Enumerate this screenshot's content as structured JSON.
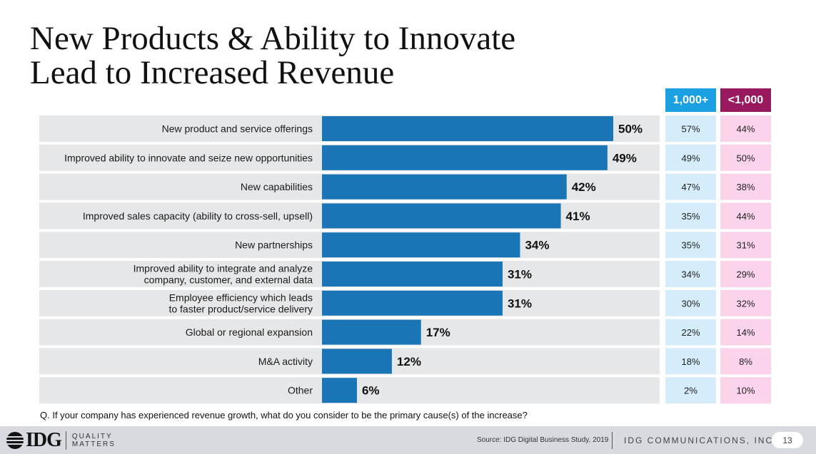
{
  "slide": {
    "title_line1": "New Products & Ability to Innovate",
    "title_line2": "Lead to Increased Revenue",
    "question": "Q. If your company has experienced revenue growth, what do you consider to be the primary cause(s) of the increase?"
  },
  "columns": {
    "big_label": "1,000+",
    "small_label": "<1,000",
    "big_color": "#1ba1e2",
    "small_color": "#99195e"
  },
  "chart_data": {
    "type": "bar",
    "orientation": "horizontal",
    "categories": [
      [
        "New product and service offerings"
      ],
      [
        "Improved ability to innovate and seize new opportunities"
      ],
      [
        "New capabilities"
      ],
      [
        "Improved sales capacity (ability to cross-sell, upsell)"
      ],
      [
        "New partnerships"
      ],
      [
        "Improved ability to integrate and analyze",
        "company, customer, and external data"
      ],
      [
        "Employee efficiency which leads",
        "to faster product/service delivery"
      ],
      [
        "Global or regional expansion"
      ],
      [
        "M&A activity"
      ],
      [
        "Other"
      ]
    ],
    "values": [
      50,
      49,
      42,
      41,
      34,
      31,
      31,
      17,
      12,
      6
    ],
    "value_labels": [
      "50%",
      "49%",
      "42%",
      "41%",
      "34%",
      "31%",
      "31%",
      "17%",
      "12%",
      "6%"
    ],
    "series": [
      {
        "name": "1,000+",
        "values": [
          57,
          49,
          47,
          35,
          35,
          34,
          30,
          22,
          18,
          2
        ],
        "labels": [
          "57%",
          "49%",
          "47%",
          "35%",
          "35%",
          "34%",
          "30%",
          "22%",
          "18%",
          "2%"
        ]
      },
      {
        "name": "<1,000",
        "values": [
          44,
          50,
          38,
          44,
          31,
          29,
          32,
          14,
          8,
          10
        ],
        "labels": [
          "44%",
          "50%",
          "38%",
          "44%",
          "31%",
          "29%",
          "32%",
          "14%",
          "8%",
          "10%"
        ]
      }
    ],
    "bar_color": "#1a75b7",
    "xlim": [
      0,
      60
    ]
  },
  "footer": {
    "logo_text": "IDG",
    "tagline_line1": "QUALITY",
    "tagline_line2": "MATTERS",
    "source": "Source: IDG Digital Business Study, 2019",
    "company": "IDG COMMUNICATIONS, INC.",
    "page_number": "13"
  }
}
